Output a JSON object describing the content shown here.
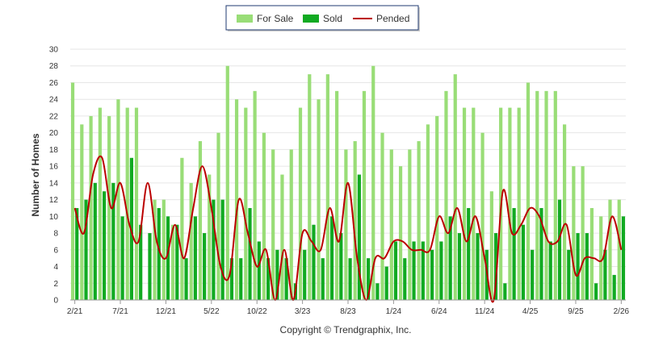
{
  "chart_data": {
    "type": "bar",
    "ylabel": "Number of Homes",
    "ylim": [
      0,
      30
    ],
    "yticks": [
      0,
      2,
      4,
      6,
      8,
      10,
      12,
      14,
      16,
      18,
      20,
      22,
      24,
      26,
      28,
      30
    ],
    "grid": true,
    "legend_position": "top-center",
    "x": [
      "2/21",
      "3/21",
      "4/21",
      "5/21",
      "6/21",
      "7/21",
      "8/21",
      "9/21",
      "10/21",
      "11/21",
      "12/21",
      "1/22",
      "2/22",
      "3/22",
      "4/22",
      "5/22",
      "6/22",
      "7/22",
      "8/22",
      "9/22",
      "10/22",
      "11/22",
      "12/22",
      "1/23",
      "2/23",
      "3/23",
      "4/23",
      "5/23",
      "6/23",
      "7/23",
      "8/23",
      "9/23",
      "10/23",
      "11/23",
      "12/23",
      "1/24",
      "2/24",
      "3/24",
      "4/24",
      "5/24",
      "6/24",
      "7/24",
      "8/24",
      "9/24",
      "10/24",
      "11/24",
      "12/24",
      "1/25",
      "2/25",
      "3/25",
      "4/25",
      "5/25",
      "6/25",
      "7/25",
      "8/25",
      "9/25",
      "10/25",
      "11/25",
      "12/25",
      "1/26",
      "2/26"
    ],
    "xtick_labels": [
      "2/21",
      "7/21",
      "12/21",
      "5/22",
      "10/22",
      "3/23",
      "8/23",
      "1/24",
      "6/24",
      "11/24",
      "4/25",
      "9/25",
      "2/26"
    ],
    "series": [
      {
        "name": "For Sale",
        "color": "#99dd77",
        "values": [
          26,
          21,
          22,
          23,
          22,
          24,
          23,
          23,
          0,
          12,
          12,
          9,
          17,
          14,
          19,
          15,
          20,
          28,
          24,
          23,
          25,
          20,
          18,
          15,
          18,
          23,
          27,
          24,
          27,
          25,
          18,
          19,
          25,
          28,
          20,
          18,
          16,
          18,
          19,
          21,
          22,
          25,
          27,
          23,
          23,
          20,
          13,
          23,
          23,
          23,
          26,
          25,
          25,
          25,
          21,
          16,
          16,
          11,
          10,
          12,
          12
        ]
      },
      {
        "name": "Sold",
        "color": "#11aa22",
        "values": [
          11,
          12,
          14,
          13,
          14,
          10,
          17,
          9,
          8,
          11,
          10,
          9,
          5,
          10,
          8,
          12,
          12,
          5,
          5,
          11,
          7,
          5,
          6,
          5,
          2,
          6,
          9,
          5,
          10,
          8,
          5,
          15,
          5,
          2,
          4,
          7,
          5,
          7,
          7,
          6,
          7,
          10,
          8,
          11,
          8,
          6,
          8,
          2,
          11,
          9,
          6,
          11,
          7,
          12,
          6,
          8,
          8,
          2,
          6,
          3,
          10
        ]
      },
      {
        "name": "Pended",
        "color": "#bb0000",
        "type": "line",
        "values": [
          11,
          8,
          15,
          17,
          11,
          14,
          9,
          7,
          14,
          7,
          5,
          9,
          5,
          11,
          16,
          11,
          4,
          3,
          12,
          8,
          4,
          6,
          0,
          6,
          0,
          8,
          7,
          6,
          11,
          7,
          14,
          5,
          0,
          5,
          5,
          7,
          7,
          6,
          6,
          6,
          10,
          8,
          11,
          7,
          10,
          5,
          0,
          13,
          8,
          9,
          11,
          10,
          7,
          7,
          9,
          3,
          5,
          5,
          5,
          10,
          6
        ]
      }
    ]
  },
  "copyright": "Copyright © Trendgraphix, Inc."
}
